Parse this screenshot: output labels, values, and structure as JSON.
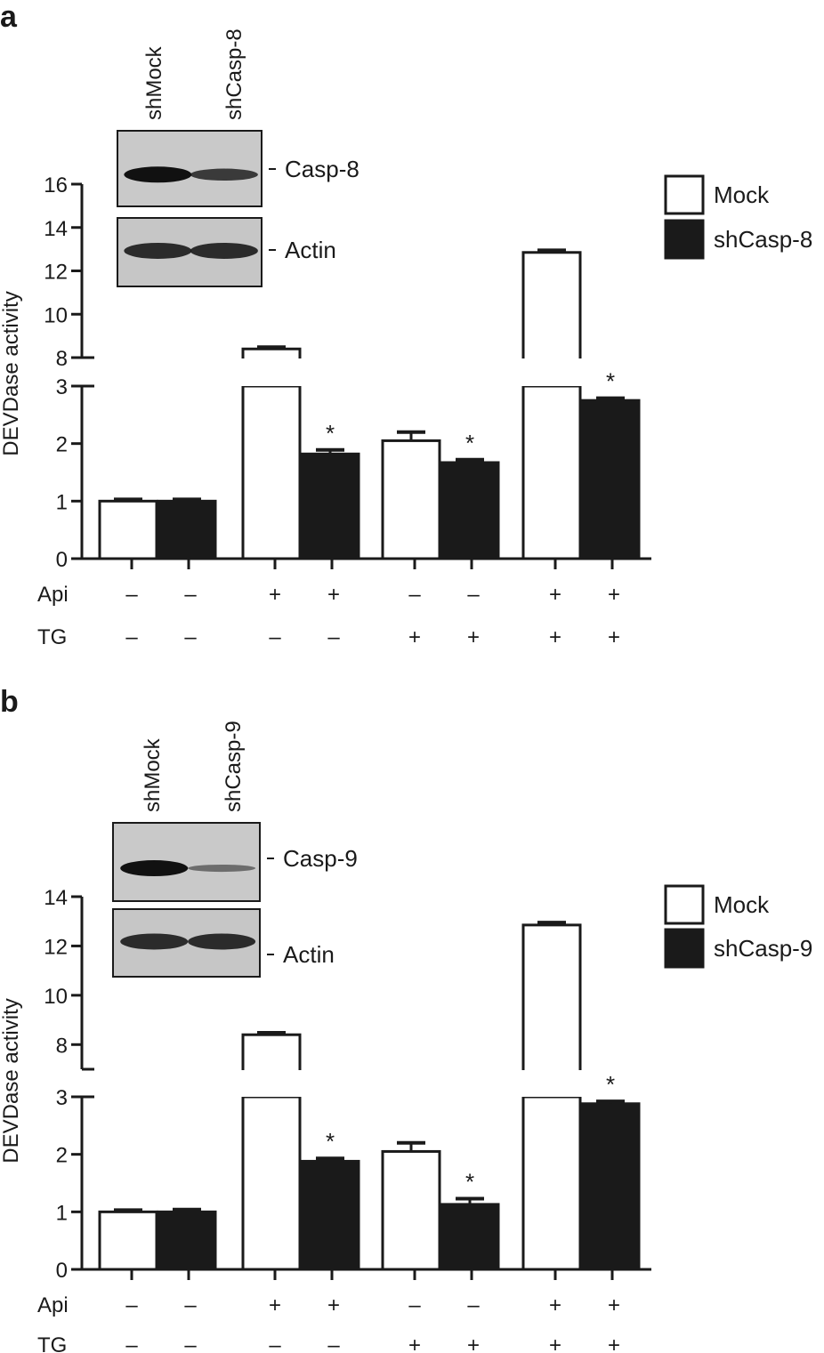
{
  "panels": [
    {
      "letter": "a",
      "legend": [
        "Mock",
        "shCasp-8"
      ],
      "blot": {
        "lanes": [
          "shMock",
          "shCasp-8"
        ],
        "bands": [
          "Casp-8",
          "Actin"
        ]
      },
      "conditions": {
        "rows": [
          {
            "label": "Api",
            "signs": [
              "–",
              "–",
              "+",
              "+",
              "–",
              "–",
              "+",
              "+"
            ]
          },
          {
            "label": "TG",
            "signs": [
              "–",
              "–",
              "–",
              "–",
              "+",
              "+",
              "+",
              "+"
            ]
          }
        ]
      },
      "chart_data": {
        "type": "bar",
        "ylabel": "DEVDase activity",
        "y_axis_break": {
          "lower": [
            0,
            3
          ],
          "upper": [
            8,
            16
          ]
        },
        "lower_ticks": [
          0,
          1,
          2,
          3
        ],
        "upper_ticks": [
          8,
          10,
          12,
          14,
          16
        ],
        "series": [
          {
            "name": "Mock",
            "color": "#ffffff",
            "values": [
              1.0,
              8.4,
              2.05,
              12.85
            ],
            "errors": [
              0.03,
              0.08,
              0.15,
              0.1
            ]
          },
          {
            "name": "shCasp-8",
            "color": "#1a1a1a",
            "values": [
              1.0,
              1.82,
              1.67,
              2.75
            ],
            "errors": [
              0.03,
              0.07,
              0.05,
              0.04
            ]
          }
        ],
        "significant": [
          {
            "group": 1,
            "series": 1,
            "label": "*"
          },
          {
            "group": 2,
            "series": 1,
            "label": "*"
          },
          {
            "group": 3,
            "series": 1,
            "label": "*"
          }
        ]
      }
    },
    {
      "letter": "b",
      "legend": [
        "Mock",
        "shCasp-9"
      ],
      "blot": {
        "lanes": [
          "shMock",
          "shCasp-9"
        ],
        "bands": [
          "Casp-9",
          "Actin"
        ]
      },
      "conditions": {
        "rows": [
          {
            "label": "Api",
            "signs": [
              "–",
              "–",
              "+",
              "+",
              "–",
              "–",
              "+",
              "+"
            ]
          },
          {
            "label": "TG",
            "signs": [
              "–",
              "–",
              "–",
              "–",
              "+",
              "+",
              "+",
              "+"
            ]
          }
        ]
      },
      "chart_data": {
        "type": "bar",
        "ylabel": "DEVDase activity",
        "y_axis_break": {
          "lower": [
            0,
            3
          ],
          "upper": [
            7,
            14
          ]
        },
        "lower_ticks": [
          0,
          1,
          2,
          3
        ],
        "upper_ticks": [
          8,
          10,
          12,
          14
        ],
        "series": [
          {
            "name": "Mock",
            "color": "#ffffff",
            "values": [
              1.0,
              8.4,
              2.05,
              12.85
            ],
            "errors": [
              0.03,
              0.08,
              0.15,
              0.1
            ]
          },
          {
            "name": "shCasp-9",
            "color": "#1a1a1a",
            "values": [
              1.0,
              1.88,
              1.13,
              2.88
            ],
            "errors": [
              0.04,
              0.05,
              0.1,
              0.04
            ]
          }
        ],
        "significant": [
          {
            "group": 1,
            "series": 1,
            "label": "*"
          },
          {
            "group": 2,
            "series": 1,
            "label": "*"
          },
          {
            "group": 3,
            "series": 1,
            "label": "*"
          }
        ]
      }
    }
  ]
}
